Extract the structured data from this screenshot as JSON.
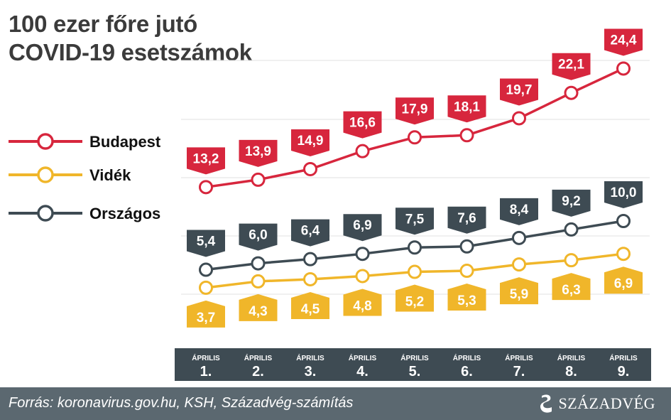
{
  "title_line1": "100 ezer főre jutó",
  "title_line2": "COVID-19 esetszámok",
  "source": "Forrás: koronavirus.gov.hu, KSH, Századvég-számítás",
  "logo_text": "SZÁZADVÉG",
  "colors": {
    "budapest": "#d7263d",
    "videk": "#f0b62a",
    "orszagos": "#3e4b53",
    "axis_bg": "#3e4b53",
    "footer_bg": "#5b6870"
  },
  "chart_data": {
    "type": "line",
    "categories_top": [
      "ÁPRILIS",
      "ÁPRILIS",
      "ÁPRILIS",
      "ÁPRILIS",
      "ÁPRILIS",
      "ÁPRILIS",
      "ÁPRILIS",
      "ÁPRILIS",
      "ÁPRILIS"
    ],
    "categories_day": [
      "1.",
      "2.",
      "3.",
      "4.",
      "5.",
      "6.",
      "7.",
      "8.",
      "9."
    ],
    "series": [
      {
        "name": "Budapest",
        "values": [
          13.2,
          13.9,
          14.9,
          16.6,
          17.9,
          18.1,
          19.7,
          22.1,
          24.4
        ],
        "labels": [
          "13,2",
          "13,9",
          "14,9",
          "16,6",
          "17,9",
          "18,1",
          "19,7",
          "22,1",
          "24,4"
        ]
      },
      {
        "name": "Vidék",
        "values": [
          3.7,
          4.3,
          4.5,
          4.8,
          5.2,
          5.3,
          5.9,
          6.3,
          6.9
        ],
        "labels": [
          "3,7",
          "4,3",
          "4,5",
          "4,8",
          "5,2",
          "5,3",
          "5,9",
          "6,3",
          "6,9"
        ]
      },
      {
        "name": "Országos",
        "values": [
          5.4,
          6.0,
          6.4,
          6.9,
          7.5,
          7.6,
          8.4,
          9.2,
          10.0
        ],
        "labels": [
          "5,4",
          "6,0",
          "6,4",
          "6,9",
          "7,5",
          "7,6",
          "8,4",
          "9,2",
          "10,0"
        ]
      }
    ],
    "ylim": [
      0,
      26
    ],
    "grid": true
  }
}
